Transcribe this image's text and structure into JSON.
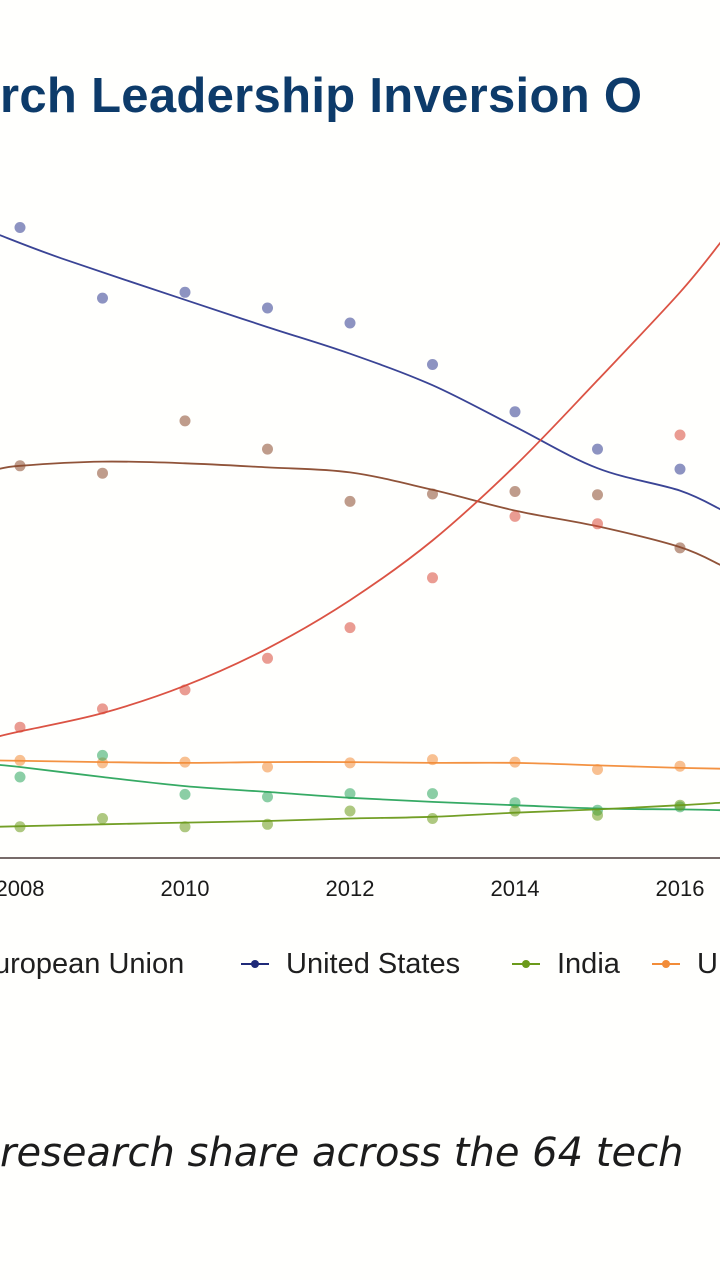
{
  "chart_data": {
    "type": "line",
    "title": "rch Leadership Inversion O",
    "xlabel": "",
    "ylabel": "",
    "x_ticks": [
      "2008",
      "2010",
      "2012",
      "2014",
      "2016"
    ],
    "x_range": [
      2007.7,
      2016.5
    ],
    "grid": false,
    "legend_position": "bottom",
    "series": [
      {
        "name": "United States",
        "color": "#2f3a8f",
        "fit": [
          [
            2007.7,
            0.755
          ],
          [
            2008.5,
            0.725
          ],
          [
            2010,
            0.675
          ],
          [
            2011,
            0.642
          ],
          [
            2012,
            0.61
          ],
          [
            2013,
            0.572
          ],
          [
            2014,
            0.522
          ],
          [
            2015,
            0.472
          ],
          [
            2016,
            0.445
          ],
          [
            2016.5,
            0.422
          ]
        ],
        "points": [
          [
            2008,
            0.762
          ],
          [
            2009,
            0.677
          ],
          [
            2010,
            0.684
          ],
          [
            2011,
            0.665
          ],
          [
            2012,
            0.647
          ],
          [
            2013,
            0.597
          ],
          [
            2014,
            0.54
          ],
          [
            2015,
            0.495
          ],
          [
            2016,
            0.471
          ]
        ]
      },
      {
        "name": "",
        "color": "#8a4a2e",
        "fit": [
          [
            2007.7,
            0.47
          ],
          [
            2008,
            0.475
          ],
          [
            2009,
            0.48
          ],
          [
            2010,
            0.478
          ],
          [
            2011,
            0.473
          ],
          [
            2012,
            0.467
          ],
          [
            2013,
            0.446
          ],
          [
            2014,
            0.421
          ],
          [
            2015,
            0.402
          ],
          [
            2016,
            0.377
          ],
          [
            2016.5,
            0.355
          ]
        ],
        "points": [
          [
            2008,
            0.475
          ],
          [
            2009,
            0.466
          ],
          [
            2010,
            0.529
          ],
          [
            2011,
            0.495
          ],
          [
            2012,
            0.432
          ],
          [
            2013,
            0.441
          ],
          [
            2014,
            0.444
          ],
          [
            2015,
            0.44
          ],
          [
            2016,
            0.376
          ]
        ]
      },
      {
        "name": "",
        "color": "#d94a3a",
        "fit": [
          [
            2007.7,
            0.148
          ],
          [
            2008,
            0.155
          ],
          [
            2009,
            0.177
          ],
          [
            2010,
            0.21
          ],
          [
            2011,
            0.255
          ],
          [
            2012,
            0.313
          ],
          [
            2013,
            0.385
          ],
          [
            2014,
            0.475
          ],
          [
            2015,
            0.578
          ],
          [
            2016,
            0.684
          ],
          [
            2016.5,
            0.745
          ]
        ],
        "points": [
          [
            2008,
            0.16
          ],
          [
            2009,
            0.182
          ],
          [
            2010,
            0.205
          ],
          [
            2011,
            0.243
          ],
          [
            2012,
            0.28
          ],
          [
            2013,
            0.34
          ],
          [
            2014,
            0.414
          ],
          [
            2015,
            0.405
          ],
          [
            2016,
            0.512
          ]
        ]
      },
      {
        "name": "",
        "color": "#f28c38",
        "fit": [
          [
            2007.7,
            0.12
          ],
          [
            2009,
            0.118
          ],
          [
            2010,
            0.117
          ],
          [
            2011,
            0.118
          ],
          [
            2012,
            0.118
          ],
          [
            2013,
            0.117
          ],
          [
            2014,
            0.117
          ],
          [
            2015,
            0.114
          ],
          [
            2016,
            0.111
          ],
          [
            2016.5,
            0.11
          ]
        ],
        "points": [
          [
            2008,
            0.12
          ],
          [
            2009,
            0.117
          ],
          [
            2010,
            0.118
          ],
          [
            2011,
            0.112
          ],
          [
            2012,
            0.117
          ],
          [
            2013,
            0.121
          ],
          [
            2014,
            0.118
          ],
          [
            2015,
            0.109
          ],
          [
            2016,
            0.113
          ]
        ]
      },
      {
        "name": "",
        "color": "#2ba55c",
        "fit": [
          [
            2007.7,
            0.115
          ],
          [
            2008,
            0.112
          ],
          [
            2009,
            0.1
          ],
          [
            2010,
            0.089
          ],
          [
            2011,
            0.082
          ],
          [
            2012,
            0.075
          ],
          [
            2013,
            0.07
          ],
          [
            2014,
            0.066
          ],
          [
            2015,
            0.062
          ],
          [
            2016,
            0.061
          ],
          [
            2016.5,
            0.06
          ]
        ],
        "points": [
          [
            2008,
            0.1
          ],
          [
            2009,
            0.126
          ],
          [
            2010,
            0.079
          ],
          [
            2011,
            0.076
          ],
          [
            2012,
            0.08
          ],
          [
            2013,
            0.08
          ],
          [
            2014,
            0.069
          ],
          [
            2015,
            0.06
          ],
          [
            2016,
            0.064
          ]
        ]
      },
      {
        "name": "India",
        "color": "#6b9a1a",
        "fit": [
          [
            2007.7,
            0.04
          ],
          [
            2009,
            0.043
          ],
          [
            2010,
            0.045
          ],
          [
            2011,
            0.047
          ],
          [
            2012,
            0.05
          ],
          [
            2013,
            0.052
          ],
          [
            2014,
            0.057
          ],
          [
            2015,
            0.061
          ],
          [
            2016,
            0.066
          ],
          [
            2016.5,
            0.069
          ]
        ],
        "points": [
          [
            2008,
            0.04
          ],
          [
            2009,
            0.05
          ],
          [
            2010,
            0.04
          ],
          [
            2011,
            0.043
          ],
          [
            2012,
            0.059
          ],
          [
            2013,
            0.05
          ],
          [
            2014,
            0.059
          ],
          [
            2015,
            0.054
          ],
          [
            2016,
            0.066
          ]
        ]
      }
    ],
    "legend": [
      {
        "label": "uropean Union",
        "color": "#8a4a2e"
      },
      {
        "label": "United States",
        "color": "#1f2a78"
      },
      {
        "label": "India",
        "color": "#6b9a1a"
      },
      {
        "label": "U",
        "color": "#f28c38"
      }
    ]
  },
  "caption": "research share across the 64 tech"
}
